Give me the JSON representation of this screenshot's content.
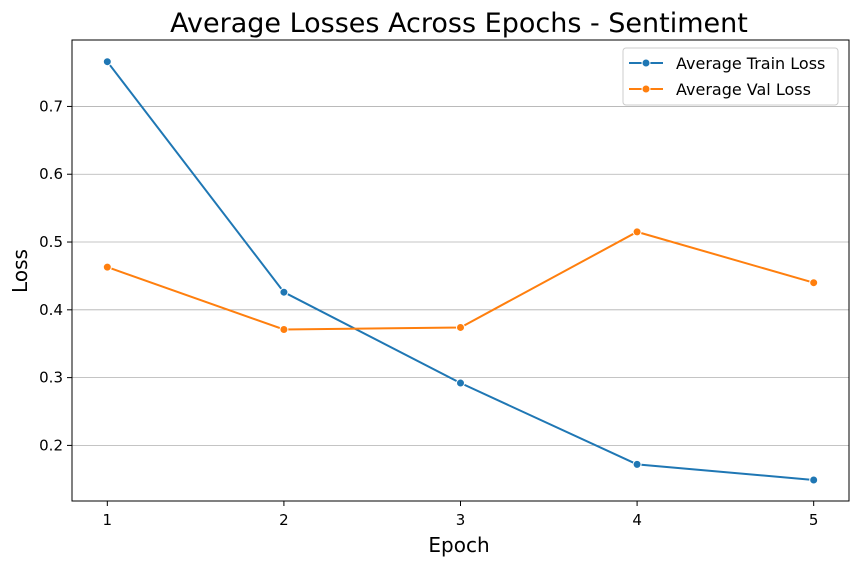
{
  "chart_data": {
    "type": "line",
    "title": "Average Losses Across Epochs - Sentiment",
    "xlabel": "Epoch",
    "ylabel": "Loss",
    "x": [
      1,
      2,
      3,
      4,
      5
    ],
    "xticks": [
      "1",
      "2",
      "3",
      "4",
      "5"
    ],
    "yticks": [
      0.2,
      0.3,
      0.4,
      0.5,
      0.6,
      0.7
    ],
    "ytick_labels": [
      "0.2",
      "0.3",
      "0.4",
      "0.5",
      "0.6",
      "0.7"
    ],
    "xlim": [
      0.8,
      5.2
    ],
    "ylim": [
      0.118,
      0.798
    ],
    "grid": "horizontal",
    "legend_position": "top-right",
    "series": [
      {
        "name": "Average Train Loss",
        "color": "#1f77b4",
        "values": [
          0.766,
          0.426,
          0.292,
          0.172,
          0.149
        ]
      },
      {
        "name": "Average Val Loss",
        "color": "#ff7f0e",
        "values": [
          0.463,
          0.371,
          0.374,
          0.515,
          0.44
        ]
      }
    ]
  }
}
